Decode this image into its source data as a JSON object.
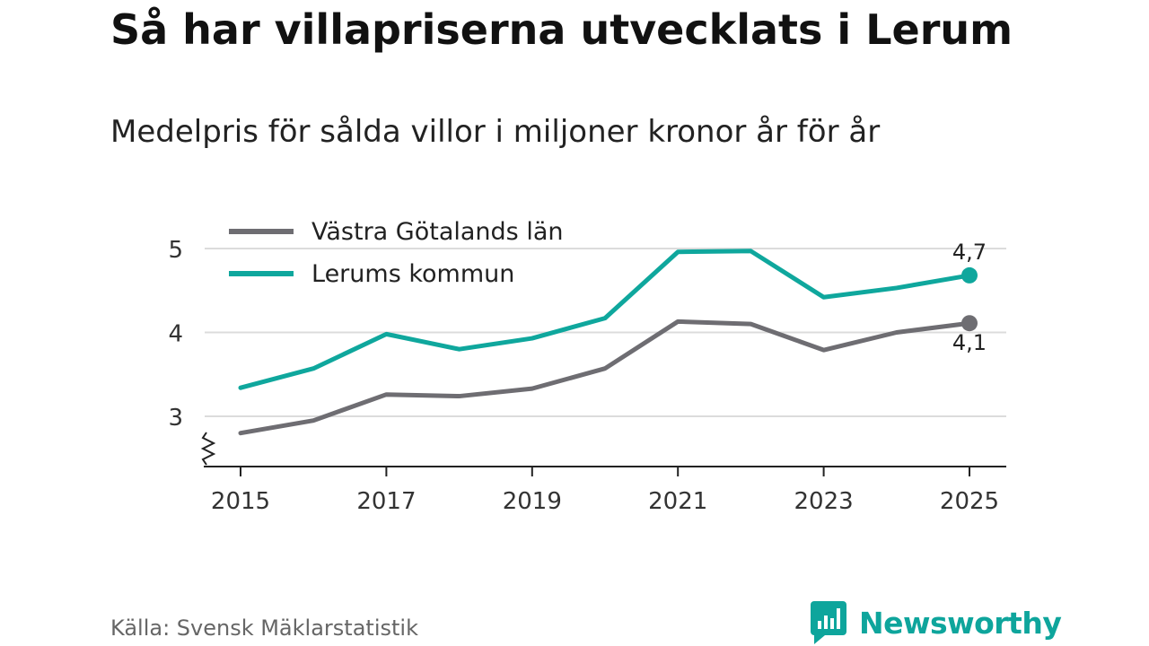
{
  "header": {
    "title": "Så har villapriserna utvecklats i Lerum",
    "subtitle": "Medelpris för sålda villor i miljoner kronor år för år"
  },
  "footer": {
    "source": "Källa: Svensk Mäklarstatistik",
    "brand": "Newsworthy"
  },
  "chart_data": {
    "type": "line",
    "title": "Så har villapriserna utvecklats i Lerum",
    "subtitle": "Medelpris för sålda villor i miljoner kronor år för år",
    "xlabel": "",
    "ylabel": "",
    "x": [
      2015,
      2016,
      2017,
      2018,
      2019,
      2020,
      2021,
      2022,
      2023,
      2024,
      2025
    ],
    "xticks": [
      "2015",
      "2017",
      "2019",
      "2021",
      "2023",
      "2025"
    ],
    "yticks": [
      "3",
      "4",
      "5"
    ],
    "ylim": [
      2.4,
      5.3
    ],
    "y_axis_break": true,
    "grid": true,
    "legend_position": "top-left",
    "series": [
      {
        "name": "Västra Götalands län",
        "color": "#6e6d72",
        "values": [
          2.8,
          2.95,
          3.26,
          3.24,
          3.33,
          3.57,
          4.13,
          4.1,
          3.79,
          4.0,
          4.11
        ],
        "end_label": "4,1"
      },
      {
        "name": "Lerums kommun",
        "color": "#0fa79d",
        "values": [
          3.34,
          3.57,
          3.98,
          3.8,
          3.93,
          4.17,
          4.96,
          4.97,
          4.42,
          4.53,
          4.68
        ],
        "end_label": "4,7"
      }
    ]
  }
}
